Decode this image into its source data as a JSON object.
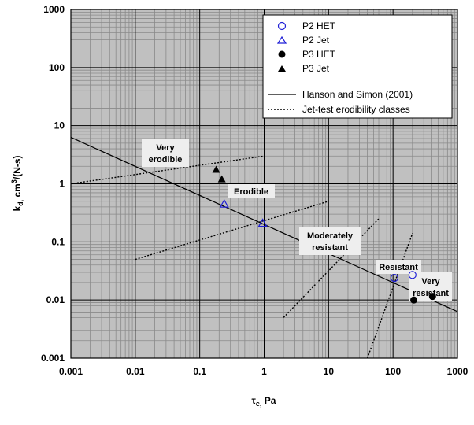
{
  "chart_data": {
    "type": "scatter",
    "xscale": "log",
    "yscale": "log",
    "xlim": [
      0.001,
      1000
    ],
    "ylim": [
      0.001,
      1000
    ],
    "x_tick_labels": [
      "0.001",
      "0.01",
      "0.1",
      "1",
      "10",
      "100",
      "1000"
    ],
    "y_tick_labels": [
      "0.001",
      "0.01",
      "0.1",
      "1",
      "10",
      "100",
      "1000"
    ],
    "xlabel": "τc, Pa",
    "ylabel": "kd, cm3/(N-s)",
    "grid": true,
    "legend_position": "top-right",
    "series": [
      {
        "name": "P2 HET",
        "marker": "open-circle",
        "color": "#1f1fd6",
        "points": [
          [
            105,
            0.024
          ],
          [
            200,
            0.027
          ]
        ]
      },
      {
        "name": "P2 Jet",
        "marker": "open-triangle",
        "color": "#1f1fd6",
        "points": [
          [
            0.24,
            0.45
          ],
          [
            0.95,
            0.21
          ]
        ]
      },
      {
        "name": "P3 HET",
        "marker": "filled-circle",
        "color": "#000000",
        "points": [
          [
            210,
            0.01
          ],
          [
            410,
            0.0115
          ]
        ]
      },
      {
        "name": "P3 Jet",
        "marker": "filled-triangle",
        "color": "#000000",
        "points": [
          [
            0.18,
            1.75
          ],
          [
            0.22,
            1.2
          ]
        ]
      }
    ],
    "curves": [
      {
        "name": "Hanson and Simon (2001)",
        "style": "solid",
        "points": [
          [
            0.001,
            6.3
          ],
          [
            1000,
            0.0063
          ]
        ]
      },
      {
        "name": "Jet-test erodibility classes",
        "style": "dotted",
        "segments": [
          [
            [
              0.001,
              1
            ],
            [
              1,
              3
            ]
          ],
          [
            [
              0.01,
              0.05
            ],
            [
              10,
              0.5
            ]
          ],
          [
            [
              2,
              0.005
            ],
            [
              60,
              0.25
            ]
          ],
          [
            [
              40,
              0.001
            ],
            [
              200,
              0.14
            ]
          ]
        ]
      }
    ],
    "annotations": [
      "Very erodible",
      "Erodible",
      "Moderately resistant",
      "Resistant",
      "Very resistant"
    ]
  },
  "labels": {
    "very_erodible": [
      "Very",
      "erodible"
    ],
    "erodible": "Erodible",
    "moderately_resistant": [
      "Moderately",
      "resistant"
    ],
    "resistant": "Resistant",
    "very_resistant": [
      "Very",
      "resistant"
    ]
  },
  "axis_text": {
    "xlabel_tau": "τ",
    "xlabel_sub": "c,",
    "xlabel_unit": " Pa",
    "ylabel_k": "k",
    "ylabel_sub": "d,",
    "ylabel_cm": " cm",
    "ylabel_exp": "3",
    "ylabel_tail": "/(N-s)"
  },
  "colors": {
    "plot_background": "#c0c0c0",
    "grid_major": "#000000",
    "grid_minor": "#8a8a8a",
    "series_blue": "#1f1fd6"
  }
}
